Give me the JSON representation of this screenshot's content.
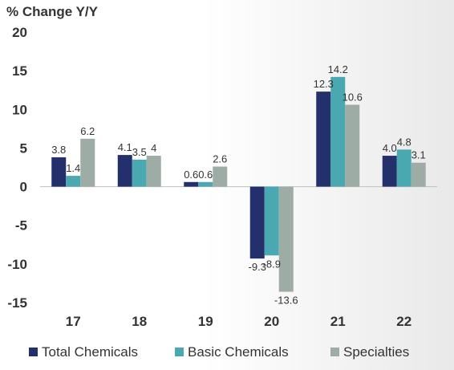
{
  "chart_data": {
    "type": "bar",
    "title": "% Change Y/Y",
    "categories": [
      "17",
      "18",
      "19",
      "20",
      "21",
      "22"
    ],
    "series": [
      {
        "name": "Total Chemicals",
        "color": "#23306b",
        "values": [
          3.8,
          4.1,
          0.6,
          -9.3,
          12.3,
          4.0
        ],
        "labels": [
          "3.8",
          "4.1",
          "0.6",
          "-9.3",
          "12.3",
          "4.0"
        ]
      },
      {
        "name": "Basic Chemicals",
        "color": "#4aa8b0",
        "values": [
          1.4,
          3.5,
          0.6,
          -8.9,
          14.2,
          4.8
        ],
        "labels": [
          "1.4",
          "3.5",
          "0.6",
          "-8.9",
          "14.2",
          "4.8"
        ]
      },
      {
        "name": "Specialties",
        "color": "#9eaca6",
        "values": [
          6.2,
          4.0,
          2.6,
          -13.6,
          10.6,
          3.1
        ],
        "labels": [
          "6.2",
          "4",
          "2.6",
          "-13.6",
          "10.6",
          "3.1"
        ]
      }
    ],
    "ylim": [
      -15,
      20
    ],
    "yticks": [
      "20",
      "15",
      "10",
      "5",
      "0",
      "-5",
      "-10",
      "-15"
    ],
    "ytick_values": [
      20,
      15,
      10,
      5,
      0,
      -5,
      -10,
      -15
    ],
    "grid": false,
    "legend_position": "bottom"
  }
}
